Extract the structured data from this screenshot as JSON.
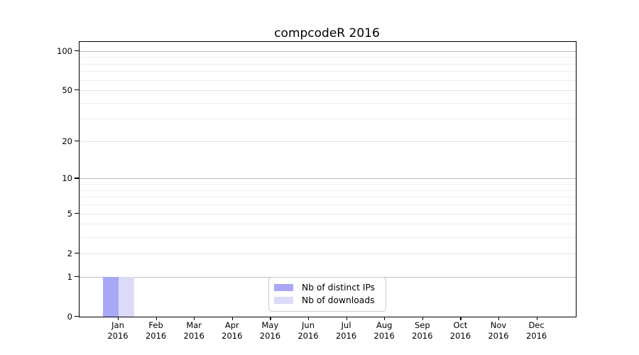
{
  "title": "compcodeR 2016",
  "chart_data": {
    "type": "bar",
    "title": "compcodeR 2016",
    "x_axis": {
      "months": [
        "Jan",
        "Feb",
        "Mar",
        "Apr",
        "May",
        "Jun",
        "Jul",
        "Aug",
        "Sep",
        "Oct",
        "Nov",
        "Dec"
      ],
      "year": "2016"
    },
    "y_axis": {
      "scale": "log1p",
      "tick_values": [
        0,
        1,
        2,
        5,
        10,
        20,
        50,
        100
      ],
      "major_gridline_values": [
        1,
        10,
        100
      ],
      "minor_gridline_values": [
        3,
        4,
        6,
        7,
        8,
        9,
        30,
        40,
        60,
        70,
        80,
        90
      ],
      "ylim": [
        0,
        117
      ],
      "grid": "on"
    },
    "series": [
      {
        "name": "Nb of distinct IPs",
        "color": "#a8a8f7",
        "values": [
          1,
          0,
          0,
          0,
          0,
          0,
          0,
          0,
          0,
          0,
          0,
          0
        ]
      },
      {
        "name": "Nb of downloads",
        "color": "#dbdbf9",
        "values": [
          1,
          0,
          0,
          0,
          0,
          0,
          0,
          0,
          0,
          0,
          0,
          0
        ]
      }
    ],
    "legend": {
      "position": "bottom-center",
      "entries": [
        "Nb of distinct IPs",
        "Nb of downloads"
      ]
    },
    "colors": {
      "major_grid": "#bdbdbd",
      "labeled_grid": "#e3e3e3",
      "minor_grid": "#ededed",
      "axis": "#000000",
      "background": "#ffffff"
    }
  }
}
